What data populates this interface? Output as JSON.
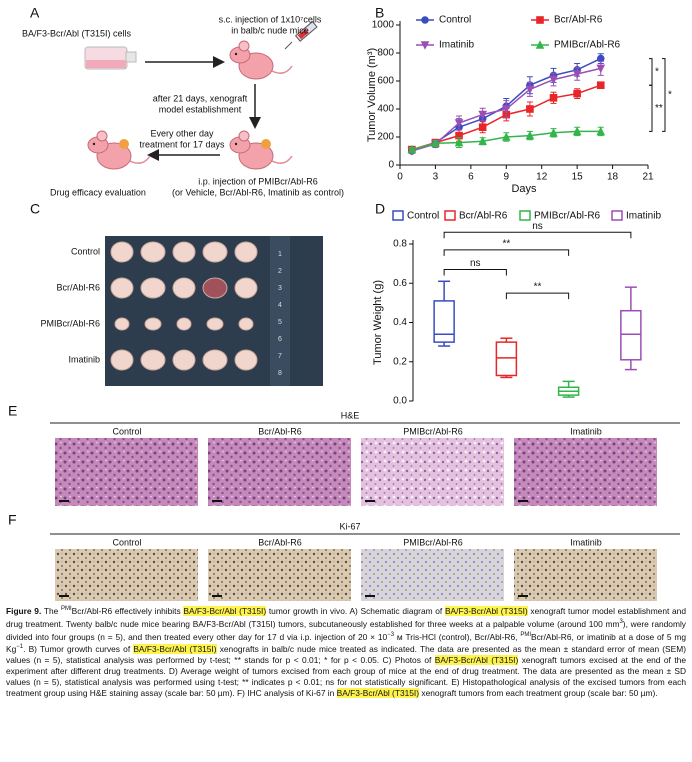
{
  "panels": {
    "A": {
      "label": "A",
      "cells": "BA/F3-Bcr/Abl (T315I) cells",
      "injection": [
        "s.c. injection of 1x10⁷cells",
        "in balb/c nude mice"
      ],
      "establishment": [
        "after 21 days, xenograft",
        "model establishment"
      ],
      "treatment": [
        "Every other day",
        "treatment for 17 days"
      ],
      "evaluation": "Drug efficacy evaluation",
      "ip": [
        "i.p. injection of PMIBcr/Abl-R6",
        "(or Vehicle, Bcr/Abl-R6, Imatinib as control)"
      ]
    },
    "C": {
      "label": "C",
      "rows": [
        "Control",
        "Bcr/Abl-R6",
        "PMIBcr/Abl-R6",
        "Imatinib"
      ],
      "ruler": [
        1,
        2,
        3,
        4,
        5,
        6,
        7,
        8
      ]
    },
    "E": {
      "label": "E",
      "title": "H&E",
      "columns": [
        "Control",
        "Bcr/Abl-R6",
        "PMIBcr/Abl-R6",
        "Imatinib"
      ]
    },
    "F": {
      "label": "F",
      "title": "Ki-67",
      "columns": [
        "Control",
        "Bcr/Abl-R6",
        "PMIBcr/Abl-R6",
        "Imatinib"
      ]
    }
  },
  "chart_data": [
    {
      "type": "line",
      "panel_label": "B",
      "x_label": "Days",
      "y_label": "Tumor Volume (m³)",
      "x": [
        1,
        3,
        5,
        7,
        9,
        11,
        13,
        15,
        17
      ],
      "series": [
        {
          "name": "Control",
          "color": "#3b4cc0",
          "marker": "circle",
          "values": [
            100,
            160,
            270,
            330,
            420,
            570,
            640,
            680,
            760
          ],
          "errors": [
            15,
            20,
            60,
            50,
            55,
            60,
            50,
            45,
            35
          ]
        },
        {
          "name": "Bcr/Abl-R6",
          "color": "#e8262a",
          "marker": "square",
          "values": [
            110,
            160,
            210,
            270,
            360,
            400,
            480,
            510,
            570
          ],
          "errors": [
            15,
            20,
            40,
            40,
            45,
            50,
            40,
            35,
            20
          ]
        },
        {
          "name": "Imatinib",
          "color": "#9b4fb5",
          "marker": "triangle-down",
          "values": [
            100,
            150,
            300,
            360,
            400,
            540,
            610,
            650,
            690
          ],
          "errors": [
            15,
            25,
            50,
            45,
            60,
            50,
            45,
            45,
            50
          ]
        },
        {
          "name": "PMIBcr/Abl-R6",
          "color": "#33b54a",
          "marker": "triangle-up",
          "values": [
            110,
            155,
            160,
            170,
            200,
            210,
            230,
            240,
            240
          ],
          "errors": [
            15,
            20,
            35,
            25,
            30,
            30,
            30,
            30,
            30
          ]
        }
      ],
      "annotations": [
        {
          "label": "*",
          "between": [
            0,
            1
          ]
        },
        {
          "label": "**",
          "between": [
            1,
            3
          ]
        },
        {
          "label": "*",
          "between": [
            0,
            3
          ]
        }
      ],
      "xlim": [
        0,
        21
      ],
      "xticks": [
        0,
        3,
        6,
        9,
        12,
        15,
        18,
        21
      ],
      "ylim": [
        0,
        1000
      ],
      "yticks": [
        0,
        200,
        400,
        600,
        800,
        1000
      ],
      "grid": false,
      "legend": "top"
    },
    {
      "type": "box",
      "panel_label": "D",
      "y_label": "Tumor Weight (g)",
      "categories": [
        "Control",
        "Bcr/Abl-R6",
        "PMIBcr/Abl-R6",
        "Imatinib"
      ],
      "boxes": [
        {
          "color": "#3b4cc0",
          "min": 0.28,
          "q1": 0.3,
          "median": 0.34,
          "q3": 0.51,
          "max": 0.61
        },
        {
          "color": "#e8262a",
          "min": 0.12,
          "q1": 0.13,
          "median": 0.22,
          "q3": 0.3,
          "max": 0.32
        },
        {
          "color": "#33b54a",
          "min": 0.02,
          "q1": 0.03,
          "median": 0.05,
          "q3": 0.07,
          "max": 0.1
        },
        {
          "color": "#9b4fb5",
          "min": 0.16,
          "q1": 0.21,
          "median": 0.34,
          "q3": 0.46,
          "max": 0.58
        }
      ],
      "comparisons": [
        {
          "label": "ns",
          "between": [
            0,
            3
          ]
        },
        {
          "label": "**",
          "between": [
            0,
            2
          ]
        },
        {
          "label": "ns",
          "between": [
            0,
            1
          ]
        },
        {
          "label": "**",
          "between": [
            1,
            2
          ]
        }
      ],
      "ylim": [
        0,
        0.8
      ],
      "yticks": [
        {
          "value": 0,
          "label": "0.0"
        },
        0.2,
        0.4,
        0.6,
        0.8
      ],
      "grid": false,
      "legend": "top"
    }
  ],
  "caption": [
    {
      "text": "Figure 9.",
      "style": "bold"
    },
    {
      "text": " The "
    },
    {
      "text": "PMI",
      "style": "sup"
    },
    {
      "text": "Bcr/Abl-R6 effectively inhibits "
    },
    {
      "text": "BA/F3-Bcr/Abl (T315I)",
      "style": "highlight"
    },
    {
      "text": " tumor growth in vivo. A) Schematic diagram of "
    },
    {
      "text": "BA/F3-Bcr/Abl (T315I)",
      "style": "highlight"
    },
    {
      "text": " xenograft tumor model establishment and drug treatment. Twenty balb/c nude mice bearing BA/F3-Bcr/Abl (T315I) tumors, subcutaneously established for three weeks at a palpable volume (around 100 mm"
    },
    {
      "text": "3",
      "style": "sup"
    },
    {
      "text": "), were randomly divided into four groups (n = 5), and then treated every other day for 17 d via i.p. injection of 20 × 10"
    },
    {
      "text": "−3",
      "style": "sup"
    },
    {
      "text": " м Tris-HCl (control), Bcr/Abl-R6, "
    },
    {
      "text": "PMI",
      "style": "sup"
    },
    {
      "text": "Bcr/Abl-R6, or imatinib at a dose of 5 mg Kg"
    },
    {
      "text": "−1",
      "style": "sup"
    },
    {
      "text": ". B) Tumor growth curves of "
    },
    {
      "text": "BA/F3-Bcr/Abl (T315I)",
      "style": "highlight"
    },
    {
      "text": " xenografts in balb/c nude mice treated as indicated. The data are presented as the mean ± standard error of mean (SEM) values (n = 5), statistical analysis was performed by t-test; ** stands for p < 0.01; * for p < 0.05. C) Photos of "
    },
    {
      "text": "BA/F3-Bcr/Abl (T315I)",
      "style": "highlight"
    },
    {
      "text": " xenograft tumors excised at the end of the experiment after different drug treatments. D) Average weight of tumors excised from each group of mice at the end of drug treatment. The data are presented as the mean ± SD values (n = 5), statistical analysis was performed using t-test; ** indicates p < 0.01; ns for not statistically significant. E) Histopathological analysis of the excised tumors from each treatment group using H&E staining assay (scale bar: 50 µm). F) IHC analysis of Ki-67 in "
    },
    {
      "text": "BA/F3-Bcr/Abl (T315I)",
      "style": "highlight"
    },
    {
      "text": " xenograft tumors from each treatment group (scale bar: 50 µm)."
    }
  ]
}
